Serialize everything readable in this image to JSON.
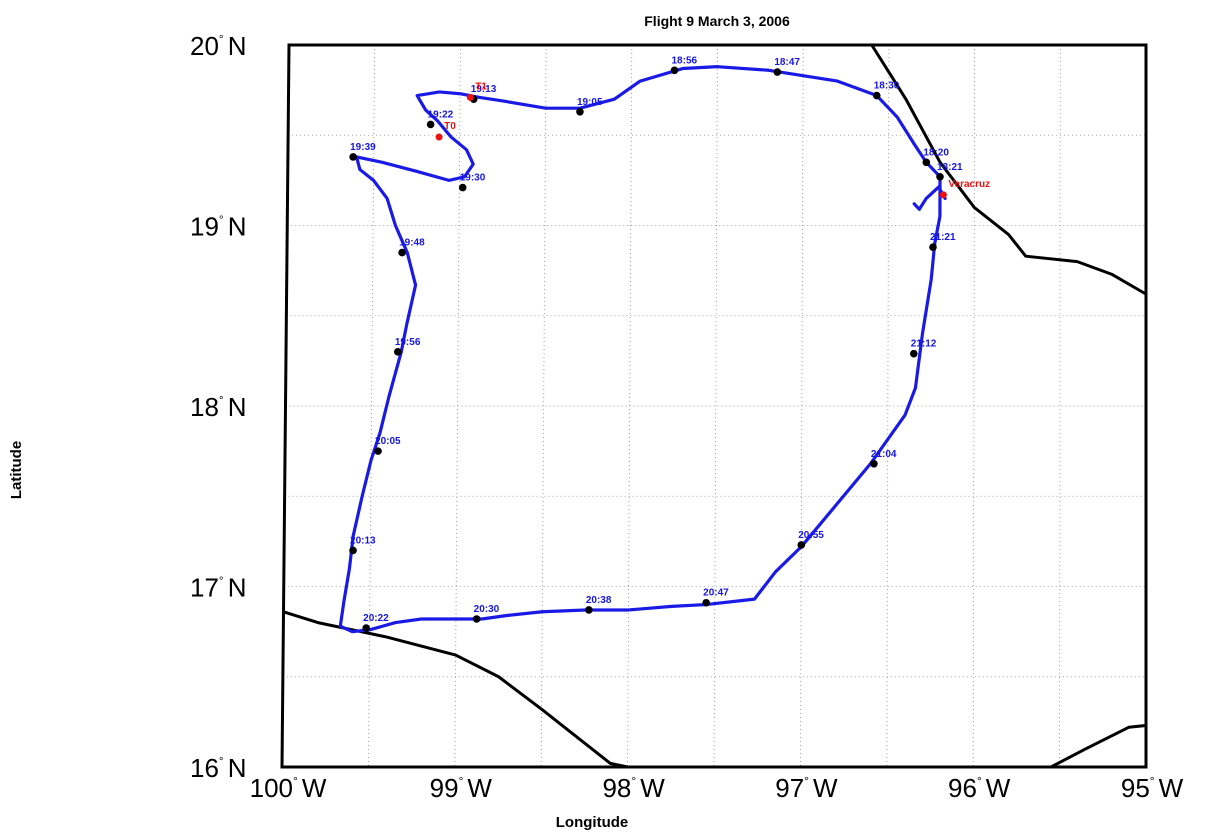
{
  "title": "Flight 9 March 3, 2006",
  "xlabel": "Longitude",
  "ylabel": "Latitude",
  "colors": {
    "track": "#1a1ae6",
    "coast": "#000000",
    "grid": "#888888",
    "marker": "#000000",
    "site": "#ee1111",
    "time_text": "#1515e6"
  },
  "x_ticks": [
    {
      "lon": 100,
      "num": "100",
      "hem": "W"
    },
    {
      "lon": 99,
      "num": "99",
      "hem": "W"
    },
    {
      "lon": 98,
      "num": "98",
      "hem": "W"
    },
    {
      "lon": 97,
      "num": "97",
      "hem": "W"
    },
    {
      "lon": 96,
      "num": "96",
      "hem": "W"
    },
    {
      "lon": 95,
      "num": "95",
      "hem": "W"
    }
  ],
  "y_ticks": [
    {
      "lat": 20,
      "num": "20",
      "hem": "N"
    },
    {
      "lat": 19,
      "num": "19",
      "hem": "N"
    },
    {
      "lat": 18,
      "num": "18",
      "hem": "N"
    },
    {
      "lat": 17,
      "num": "17",
      "hem": "N"
    },
    {
      "lat": 16,
      "num": "16",
      "hem": "N"
    }
  ],
  "chart_data": {
    "type": "line",
    "title": "Flight 9 March 3, 2006",
    "xlabel": "Longitude",
    "ylabel": "Latitude",
    "xlim": [
      -100,
      -95
    ],
    "ylim": [
      16,
      20
    ],
    "grid": true,
    "track": [
      [
        -96.17,
        19.15
      ],
      [
        -96.2,
        19.2
      ],
      [
        -96.2,
        19.27
      ],
      [
        -96.28,
        19.35
      ],
      [
        -96.35,
        19.45
      ],
      [
        -96.45,
        19.6
      ],
      [
        -96.57,
        19.72
      ],
      [
        -96.8,
        19.8
      ],
      [
        -97.2,
        19.86
      ],
      [
        -97.5,
        19.88
      ],
      [
        -97.7,
        19.87
      ],
      [
        -97.95,
        19.8
      ],
      [
        -98.1,
        19.7
      ],
      [
        -98.3,
        19.65
      ],
      [
        -98.5,
        19.65
      ],
      [
        -98.75,
        19.69
      ],
      [
        -98.89,
        19.71
      ],
      [
        -99.0,
        19.73
      ],
      [
        -99.12,
        19.74
      ],
      [
        -99.25,
        19.72
      ],
      [
        -99.2,
        19.64
      ],
      [
        -99.13,
        19.58
      ],
      [
        -99.05,
        19.49
      ],
      [
        -98.96,
        19.42
      ],
      [
        -98.92,
        19.34
      ],
      [
        -98.97,
        19.27
      ],
      [
        -99.06,
        19.25
      ],
      [
        -99.25,
        19.3
      ],
      [
        -99.45,
        19.35
      ],
      [
        -99.6,
        19.38
      ],
      [
        -99.58,
        19.31
      ],
      [
        -99.5,
        19.25
      ],
      [
        -99.42,
        19.15
      ],
      [
        -99.37,
        19.0
      ],
      [
        -99.3,
        18.85
      ],
      [
        -99.25,
        18.67
      ],
      [
        -99.3,
        18.45
      ],
      [
        -99.33,
        18.3
      ],
      [
        -99.4,
        18.05
      ],
      [
        -99.45,
        17.85
      ],
      [
        -99.5,
        17.7
      ],
      [
        -99.55,
        17.5
      ],
      [
        -99.6,
        17.28
      ],
      [
        -99.62,
        17.1
      ],
      [
        -99.65,
        16.92
      ],
      [
        -99.67,
        16.78
      ],
      [
        -99.6,
        16.75
      ],
      [
        -99.5,
        16.76
      ],
      [
        -99.35,
        16.8
      ],
      [
        -99.2,
        16.82
      ],
      [
        -99.0,
        16.82
      ],
      [
        -98.85,
        16.82
      ],
      [
        -98.7,
        16.84
      ],
      [
        -98.5,
        16.86
      ],
      [
        -98.25,
        16.87
      ],
      [
        -98.0,
        16.87
      ],
      [
        -97.75,
        16.89
      ],
      [
        -97.55,
        16.9
      ],
      [
        -97.27,
        16.93
      ],
      [
        -97.15,
        17.08
      ],
      [
        -97.0,
        17.22
      ],
      [
        -96.8,
        17.45
      ],
      [
        -96.6,
        17.68
      ],
      [
        -96.4,
        17.95
      ],
      [
        -96.34,
        18.1
      ],
      [
        -96.3,
        18.4
      ],
      [
        -96.25,
        18.7
      ],
      [
        -96.23,
        18.9
      ],
      [
        -96.2,
        19.05
      ],
      [
        -96.2,
        19.15
      ],
      [
        -96.2,
        19.22
      ],
      [
        -96.28,
        19.15
      ],
      [
        -96.32,
        19.09
      ],
      [
        -96.35,
        19.12
      ]
    ],
    "time_markers": [
      {
        "label": "18:30",
        "lon": -96.57,
        "lat": 19.72
      },
      {
        "label": "18:47",
        "lon": -97.15,
        "lat": 19.85
      },
      {
        "label": "18:56",
        "lon": -97.75,
        "lat": 19.86
      },
      {
        "label": "19:05",
        "lon": -98.3,
        "lat": 19.63
      },
      {
        "label": "19:13",
        "lon": -98.92,
        "lat": 19.7
      },
      {
        "label": "19:22",
        "lon": -99.17,
        "lat": 19.56
      },
      {
        "label": "19:30",
        "lon": -98.98,
        "lat": 19.21
      },
      {
        "label": "19:39",
        "lon": -99.62,
        "lat": 19.38
      },
      {
        "label": "19:48",
        "lon": -99.33,
        "lat": 18.85
      },
      {
        "label": "19:56",
        "lon": -99.35,
        "lat": 18.3
      },
      {
        "label": "20:05",
        "lon": -99.46,
        "lat": 17.75
      },
      {
        "label": "20:13",
        "lon": -99.6,
        "lat": 17.2
      },
      {
        "label": "20:22",
        "lon": -99.52,
        "lat": 16.77
      },
      {
        "label": "20:30",
        "lon": -98.88,
        "lat": 16.82
      },
      {
        "label": "20:38",
        "lon": -98.23,
        "lat": 16.87
      },
      {
        "label": "20:47",
        "lon": -97.55,
        "lat": 16.91
      },
      {
        "label": "20:55",
        "lon": -97.0,
        "lat": 17.23
      },
      {
        "label": "21:04",
        "lon": -96.58,
        "lat": 17.68
      },
      {
        "label": "21:12",
        "lon": -96.35,
        "lat": 18.29
      },
      {
        "label": "21:21",
        "lon": -96.24,
        "lat": 18.88
      },
      {
        "label": "18:20",
        "lon": -96.28,
        "lat": 19.35
      },
      {
        "label": "18:21",
        "lon": -96.2,
        "lat": 19.27
      }
    ],
    "sites": [
      {
        "label": "T0",
        "lon": -99.12,
        "lat": 19.49
      },
      {
        "label": "T1",
        "lon": -98.94,
        "lat": 19.71
      },
      {
        "label": "Veracruz",
        "lon": -96.18,
        "lat": 19.17
      }
    ],
    "coastlines": [
      [
        [
          -100.0,
          16.86
        ],
        [
          -99.8,
          16.8
        ],
        [
          -99.4,
          16.72
        ],
        [
          -99.0,
          16.62
        ],
        [
          -98.75,
          16.5
        ],
        [
          -98.5,
          16.32
        ],
        [
          -98.3,
          16.17
        ],
        [
          -98.1,
          16.02
        ],
        [
          -98.0,
          16.0
        ]
      ],
      [
        [
          -96.6,
          20.0
        ],
        [
          -96.4,
          19.7
        ],
        [
          -96.2,
          19.35
        ],
        [
          -96.0,
          19.1
        ],
        [
          -95.8,
          18.95
        ],
        [
          -95.7,
          18.83
        ],
        [
          -95.4,
          18.8
        ],
        [
          -95.2,
          18.73
        ],
        [
          -95.0,
          18.62
        ]
      ],
      [
        [
          -95.55,
          16.0
        ],
        [
          -95.35,
          16.1
        ],
        [
          -95.1,
          16.22
        ],
        [
          -95.0,
          16.23
        ]
      ]
    ]
  }
}
